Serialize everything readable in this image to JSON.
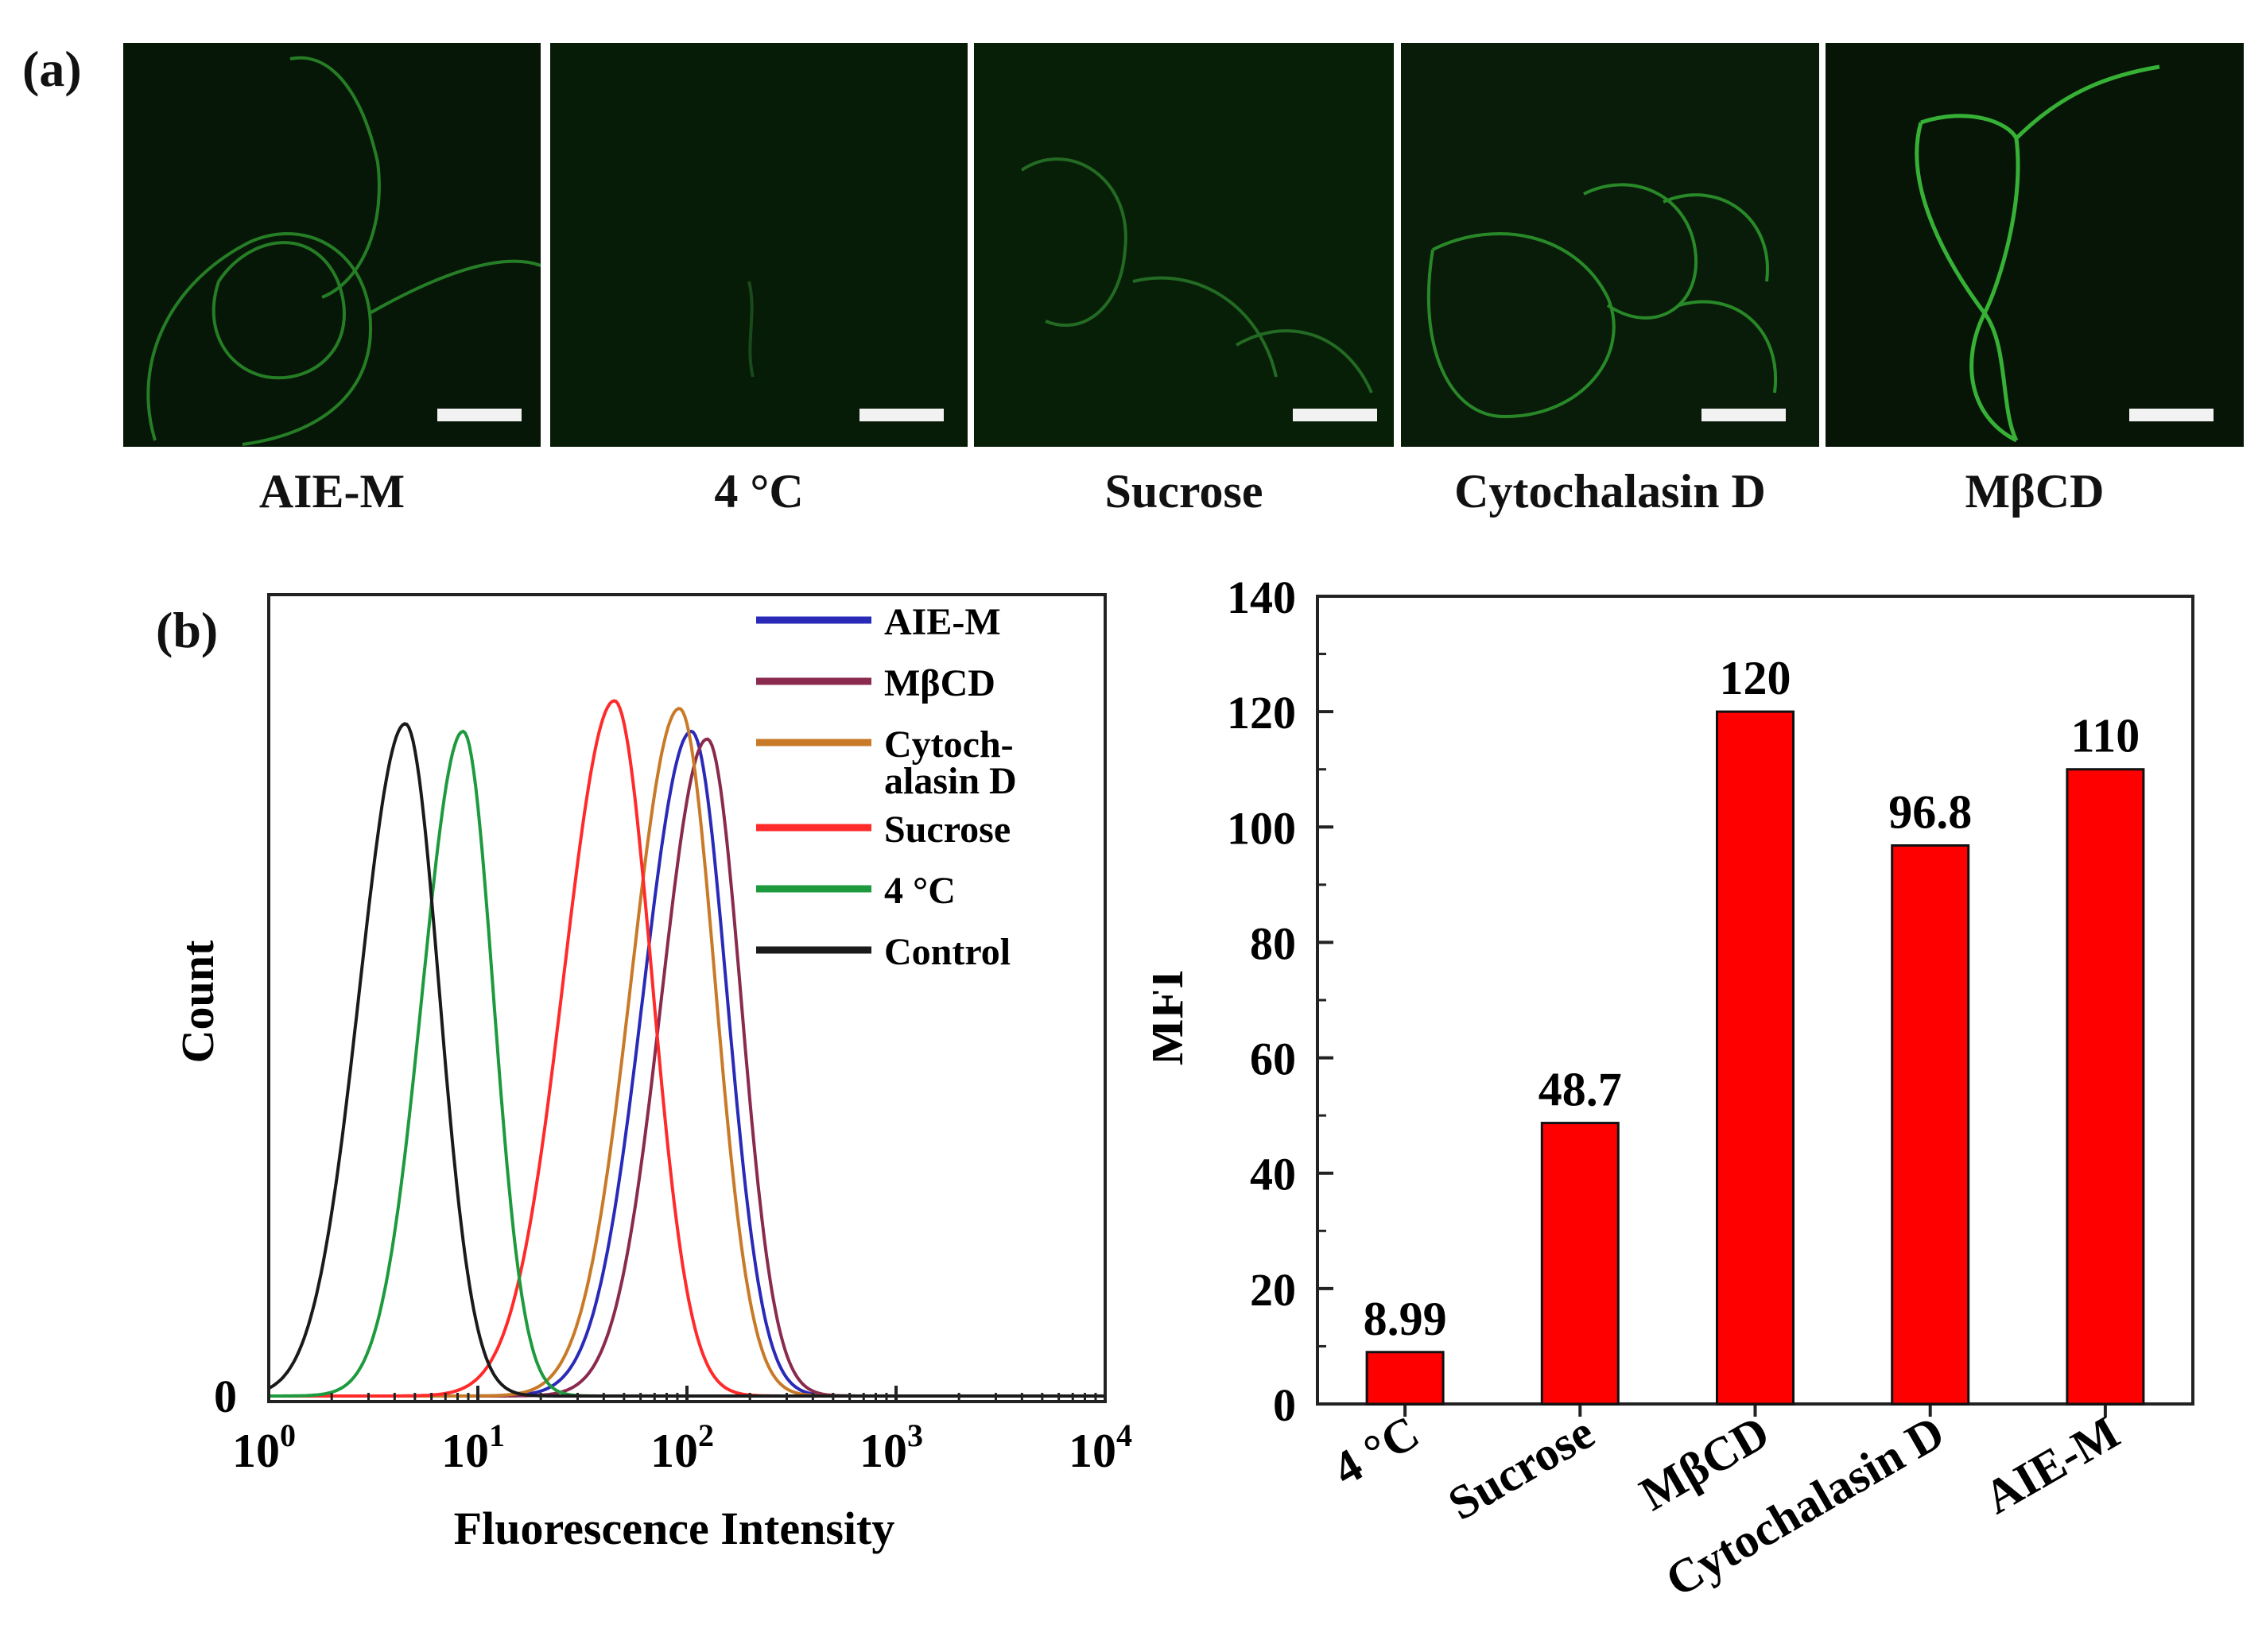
{
  "panel_labels": {
    "a": "(a)",
    "b": "(b)"
  },
  "micrographs": [
    {
      "label": "AIE-M",
      "brightness": 0.85
    },
    {
      "label": "4 °C",
      "brightness": 0.12
    },
    {
      "label": "Sucrose",
      "brightness": 0.35
    },
    {
      "label": "Cytochalasin D",
      "brightness": 0.8
    },
    {
      "label": "MβCD",
      "brightness": 1.0
    }
  ],
  "chart_data": [
    {
      "type": "line",
      "title": "",
      "xlabel": "Fluorescence Intensity",
      "ylabel": "Count",
      "xscale": "log",
      "xlim": [
        1,
        10000
      ],
      "x_ticks": [
        {
          "base": "10",
          "exp": "0",
          "value": 1
        },
        {
          "base": "10",
          "exp": "1",
          "value": 10
        },
        {
          "base": "10",
          "exp": "2",
          "value": 100
        },
        {
          "base": "10",
          "exp": "3",
          "value": 1000
        },
        {
          "base": "10",
          "exp": "4",
          "value": 10000
        }
      ],
      "y_tick_labels": [
        "0"
      ],
      "legend_position": "top-right",
      "series": [
        {
          "name": "AIE-M",
          "color": "#2a2ab8",
          "peak_x": 105,
          "peak_height": 0.87,
          "width_decades": 0.2
        },
        {
          "name": "MβCD",
          "color": "#8a2a4e",
          "peak_x": 125,
          "peak_height": 0.86,
          "width_decades": 0.19
        },
        {
          "name": "Cytoch- alasin D",
          "legend_lines": [
            "Cytoch-",
            "alasin D"
          ],
          "color": "#c87a28",
          "peak_x": 92,
          "peak_height": 0.9,
          "width_decades": 0.2
        },
        {
          "name": "Sucrose",
          "color": "#ff2a2a",
          "peak_x": 45,
          "peak_height": 0.91,
          "width_decades": 0.21
        },
        {
          "name": "4 °C",
          "color": "#1e9a3e",
          "peak_x": 8.5,
          "peak_height": 0.87,
          "width_decades": 0.17
        },
        {
          "name": "Control",
          "color": "#1a1a1a",
          "peak_x": 4.5,
          "peak_height": 0.88,
          "width_decades": 0.19
        }
      ]
    },
    {
      "type": "bar",
      "title": "",
      "xlabel": "",
      "ylabel": "MFI",
      "ylim": [
        0,
        140
      ],
      "y_ticks": [
        0,
        20,
        40,
        60,
        80,
        100,
        120,
        140
      ],
      "bar_color": "#ff0000",
      "categories": [
        "4 °C",
        "Sucrose",
        "MβCD",
        "Cytochalasin D",
        "AIE-M"
      ],
      "values": [
        8.99,
        48.7,
        120,
        96.8,
        110
      ],
      "value_labels": [
        "8.99",
        "48.7",
        "120",
        "96.8",
        "110"
      ]
    }
  ]
}
